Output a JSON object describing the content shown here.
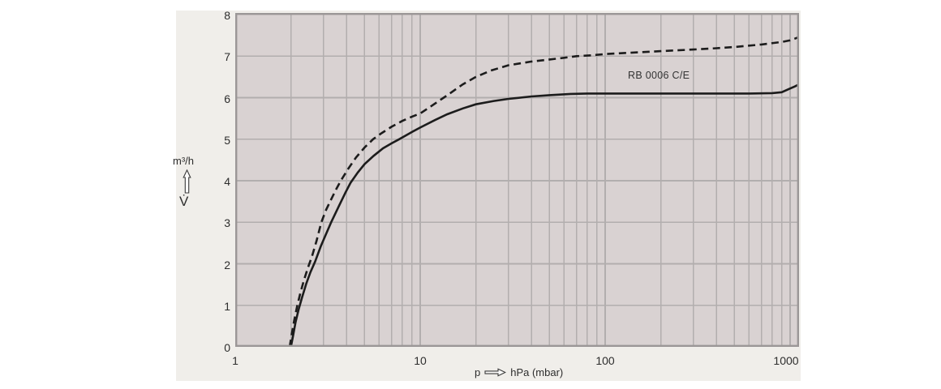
{
  "colors": {
    "page_bg": "#ffffff",
    "panel_bg": "#f0eeea",
    "plot_bg": "#d9d2d2",
    "grid": "#b2aeae",
    "plot_border": "#9b9797",
    "curve": "#1c1c1c",
    "text": "#2d2d2d"
  },
  "y_axis": {
    "unit": "m³/h",
    "quantity_symbol": "V̇",
    "ticks": [
      8,
      7,
      6,
      5,
      4,
      3,
      2,
      1,
      0
    ]
  },
  "x_axis": {
    "label_symbol": "p",
    "label_unit": "hPa (mbar)",
    "ticks": [
      1,
      10,
      100,
      1000
    ]
  },
  "curve_label": "RB 0006 C/E",
  "chart_data": {
    "type": "line",
    "title": "",
    "xlabel": "p (hPa / mbar)",
    "ylabel": "V̇ (m³/h)",
    "x_scale": "log",
    "xlim": [
      1,
      1118
    ],
    "ylim": [
      0,
      8
    ],
    "grid": true,
    "legend_position": "none",
    "annotations": [
      {
        "text": "RB 0006 C/E",
        "x": 150,
        "y": 6.55
      }
    ],
    "series": [
      {
        "name": "RB 0006 C/E pumping speed (solid)",
        "style": "solid",
        "points": [
          [
            2.0,
            0.0
          ],
          [
            2.05,
            0.25
          ],
          [
            2.12,
            0.6
          ],
          [
            2.2,
            0.9
          ],
          [
            2.3,
            1.2
          ],
          [
            2.42,
            1.52
          ],
          [
            2.55,
            1.8
          ],
          [
            2.7,
            2.05
          ],
          [
            2.9,
            2.42
          ],
          [
            3.1,
            2.72
          ],
          [
            3.3,
            3.0
          ],
          [
            3.6,
            3.35
          ],
          [
            3.95,
            3.72
          ],
          [
            4.2,
            3.95
          ],
          [
            4.6,
            4.2
          ],
          [
            5.0,
            4.4
          ],
          [
            5.6,
            4.6
          ],
          [
            6.3,
            4.78
          ],
          [
            7.0,
            4.9
          ],
          [
            7.7,
            5.0
          ],
          [
            9.0,
            5.17
          ],
          [
            10,
            5.28
          ],
          [
            12,
            5.46
          ],
          [
            14,
            5.6
          ],
          [
            17,
            5.74
          ],
          [
            20,
            5.84
          ],
          [
            25,
            5.92
          ],
          [
            30,
            5.97
          ],
          [
            40,
            6.03
          ],
          [
            50,
            6.06
          ],
          [
            65,
            6.09
          ],
          [
            80,
            6.1
          ],
          [
            100,
            6.1
          ],
          [
            200,
            6.1
          ],
          [
            400,
            6.1
          ],
          [
            600,
            6.1
          ],
          [
            800,
            6.11
          ],
          [
            900,
            6.13
          ],
          [
            1000,
            6.22
          ],
          [
            1060,
            6.27
          ],
          [
            1118,
            6.32
          ]
        ]
      },
      {
        "name": "upper pumping speed curve (dashed)",
        "style": "dashed",
        "points": [
          [
            1.97,
            0.0
          ],
          [
            2.02,
            0.3
          ],
          [
            2.08,
            0.62
          ],
          [
            2.16,
            0.98
          ],
          [
            2.25,
            1.3
          ],
          [
            2.35,
            1.6
          ],
          [
            2.47,
            1.9
          ],
          [
            2.6,
            2.18
          ],
          [
            2.75,
            2.55
          ],
          [
            2.92,
            3.0
          ],
          [
            3.1,
            3.3
          ],
          [
            3.3,
            3.55
          ],
          [
            3.5,
            3.78
          ],
          [
            3.72,
            4.0
          ],
          [
            4.1,
            4.3
          ],
          [
            4.5,
            4.56
          ],
          [
            5.0,
            4.8
          ],
          [
            5.56,
            5.0
          ],
          [
            6.2,
            5.15
          ],
          [
            7.0,
            5.3
          ],
          [
            8.0,
            5.44
          ],
          [
            9.0,
            5.54
          ],
          [
            10,
            5.62
          ],
          [
            11.5,
            5.8
          ],
          [
            13.4,
            6.0
          ],
          [
            15,
            6.15
          ],
          [
            17,
            6.32
          ],
          [
            20,
            6.5
          ],
          [
            24,
            6.65
          ],
          [
            30,
            6.78
          ],
          [
            40,
            6.87
          ],
          [
            50,
            6.92
          ],
          [
            60,
            6.96
          ],
          [
            70,
            7.0
          ],
          [
            85,
            7.02
          ],
          [
            100,
            7.05
          ],
          [
            150,
            7.09
          ],
          [
            200,
            7.12
          ],
          [
            300,
            7.16
          ],
          [
            400,
            7.19
          ],
          [
            500,
            7.22
          ],
          [
            700,
            7.28
          ],
          [
            900,
            7.34
          ],
          [
            1000,
            7.38
          ],
          [
            1060,
            7.42
          ],
          [
            1118,
            7.46
          ]
        ]
      }
    ]
  }
}
